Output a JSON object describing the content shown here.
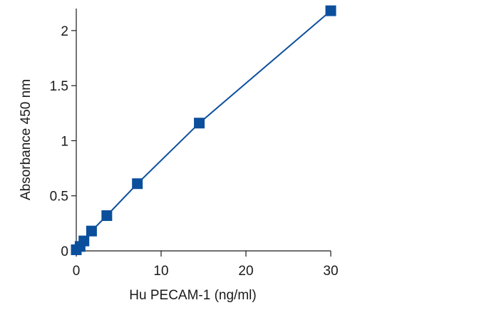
{
  "chart_data": {
    "type": "line",
    "title": "",
    "xlabel": "Hu PECAM-1 (ng/ml)",
    "ylabel": "Absorbance 450 nm",
    "xlim": [
      0,
      30
    ],
    "ylim": [
      0,
      2.2
    ],
    "x_ticks": [
      0,
      10,
      20,
      30
    ],
    "x_tick_labels": [
      "0",
      "10",
      "20",
      "30"
    ],
    "y_ticks": [
      0,
      0.5,
      1,
      1.5,
      2
    ],
    "y_tick_labels": [
      "0",
      "0.5",
      "1",
      "1.5",
      "2"
    ],
    "grid": false,
    "legend": "none",
    "marker": "square",
    "color": "#0b4f9c",
    "series": [
      {
        "x": [
          0,
          0.45,
          0.9,
          1.8,
          3.6,
          7.2,
          14.5,
          30
        ],
        "y": [
          0.01,
          0.04,
          0.09,
          0.18,
          0.32,
          0.61,
          1.16,
          2.18
        ]
      }
    ]
  }
}
